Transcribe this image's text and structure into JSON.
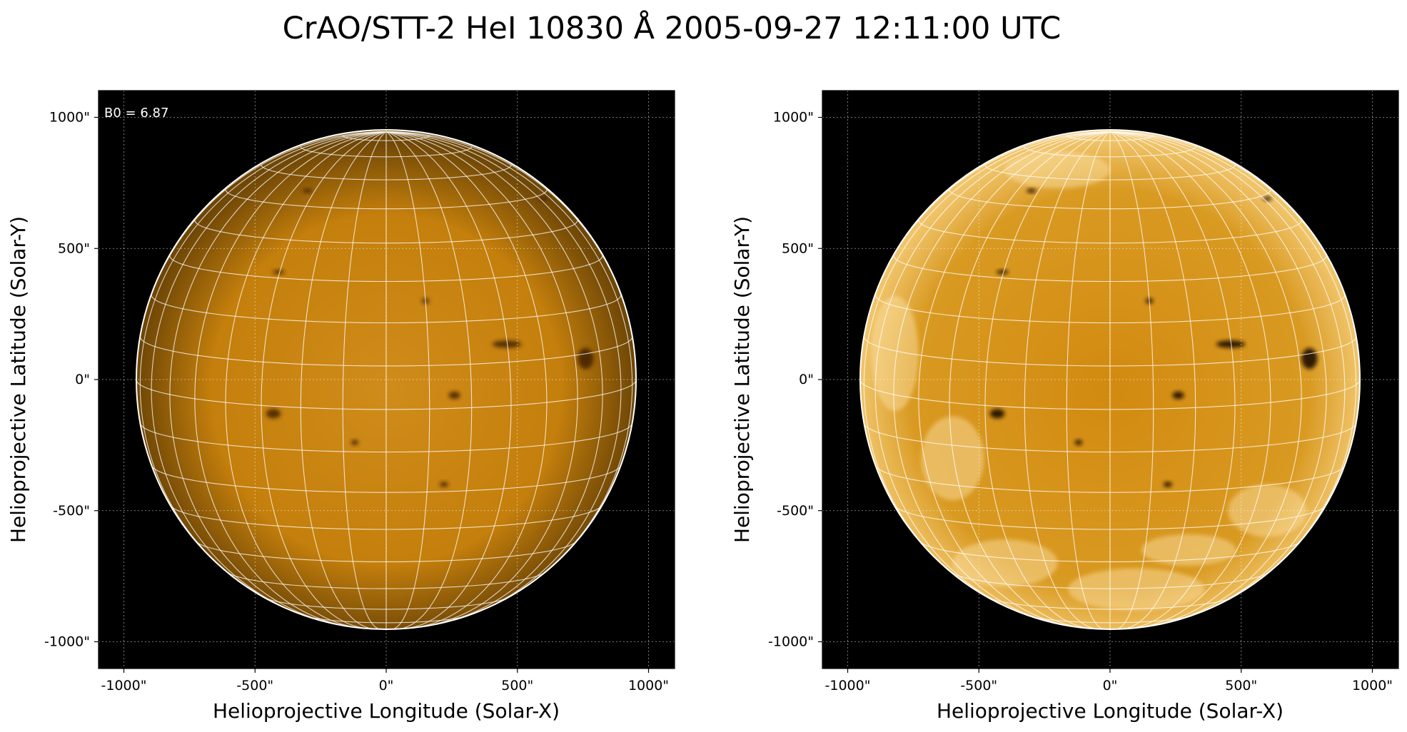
{
  "title": "CrAO/STT-2 HeI 10830 Å 2005-09-27 12:11:00 UTC",
  "colors": {
    "background": "#000000",
    "disk": "#c8840c",
    "grid": "#ffffff"
  },
  "panels": [
    {
      "name": "left",
      "annotation": "B0 = 6.87",
      "xlabel": "Helioprojective Longitude (Solar-X)",
      "ylabel": "Helioprojective Latitude (Solar-Y)",
      "xticks": [
        "-1000\"",
        "-500\"",
        "0\"",
        "500\"",
        "1000\""
      ],
      "yticks": [
        "1000\"",
        "500\"",
        "0\"",
        "-500\"",
        "-1000\""
      ],
      "contrast": "normal"
    },
    {
      "name": "right",
      "annotation": "",
      "xlabel": "Helioprojective Longitude (Solar-X)",
      "ylabel": "Helioprojective Latitude (Solar-Y)",
      "xticks": [
        "-1000\"",
        "-500\"",
        "0\"",
        "500\"",
        "1000\""
      ],
      "yticks": [
        "1000\"",
        "500\"",
        "0\"",
        "-500\"",
        "-1000\""
      ],
      "contrast": "enhanced"
    }
  ]
}
